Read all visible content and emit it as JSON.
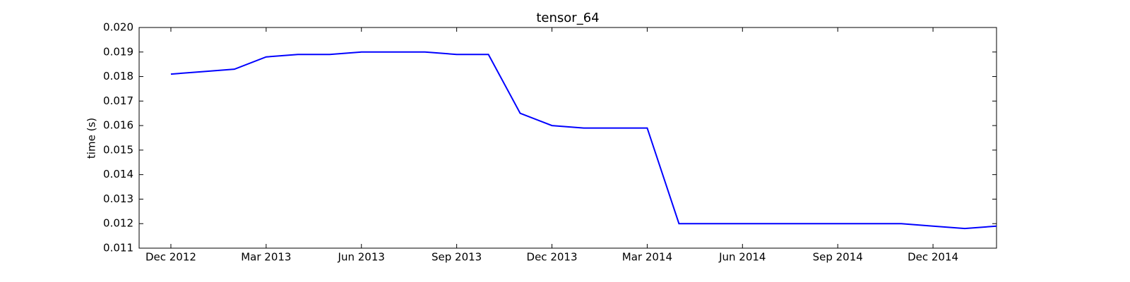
{
  "chart_data": {
    "type": "line",
    "title": "tensor_64",
    "y_label": "time (s)",
    "x": [
      "2012-12",
      "2013-01",
      "2013-02",
      "2013-03",
      "2013-04",
      "2013-05",
      "2013-06",
      "2013-07",
      "2013-08",
      "2013-09",
      "2013-10",
      "2013-11",
      "2013-12",
      "2014-01",
      "2014-02",
      "2014-03",
      "2014-04",
      "2014-05",
      "2014-06",
      "2014-07",
      "2014-08",
      "2014-09",
      "2014-10",
      "2014-11",
      "2014-12",
      "2015-01",
      "2015-02"
    ],
    "series": [
      {
        "name": "tensor_64",
        "color": "#0000ff",
        "values": [
          0.0181,
          0.0182,
          0.0183,
          0.0188,
          0.0189,
          0.0189,
          0.019,
          0.019,
          0.019,
          0.0189,
          0.0189,
          0.0165,
          0.016,
          0.0159,
          0.0159,
          0.0159,
          0.012,
          0.012,
          0.012,
          0.012,
          0.012,
          0.012,
          0.012,
          0.012,
          0.0119,
          0.0118,
          0.0119
        ]
      }
    ],
    "xlim": [
      "2012-11",
      "2015-02"
    ],
    "xticks": [
      {
        "value": "2012-12",
        "label": "Dec 2012"
      },
      {
        "value": "2013-03",
        "label": "Mar 2013"
      },
      {
        "value": "2013-06",
        "label": "Jun 2013"
      },
      {
        "value": "2013-09",
        "label": "Sep 2013"
      },
      {
        "value": "2013-12",
        "label": "Dec 2013"
      },
      {
        "value": "2014-03",
        "label": "Mar 2014"
      },
      {
        "value": "2014-06",
        "label": "Jun 2014"
      },
      {
        "value": "2014-09",
        "label": "Sep 2014"
      },
      {
        "value": "2014-12",
        "label": "Dec 2014"
      }
    ],
    "ylim": [
      0.011,
      0.02
    ],
    "yticks": [
      0.011,
      0.012,
      0.013,
      0.014,
      0.015,
      0.016,
      0.017,
      0.018,
      0.019,
      {
        "value": 0.02,
        "label": "0.020"
      }
    ],
    "grid": false
  }
}
